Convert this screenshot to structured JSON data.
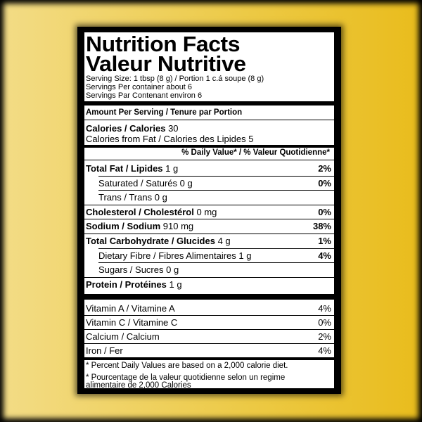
{
  "header": {
    "title1": "Nutrition Facts",
    "title2": "Valeur Nutritive"
  },
  "serving": [
    "Serving Size: 1 tbsp (8 g) / Portion 1 c.á soupe (8 g)",
    "Servings Per container about 6",
    "Servings Par Contenant environ 6"
  ],
  "amount_header": "Amount Per Serving / Tenure par Portion",
  "calories": {
    "label": "Calories / Calories",
    "value": "30",
    "fat_line": "Calories from Fat / Calories des Lipides 5"
  },
  "dv_header": "% Daily Value* / % Valeur Quotidienne*",
  "nutrients": [
    {
      "label": "Total Fat / Lipides",
      "amount": "1 g",
      "dv": "2%"
    },
    {
      "label": "Saturated / Saturés",
      "amount": "0 g",
      "dv": "0%",
      "sub": true
    },
    {
      "label": "Trans / Trans",
      "amount": "0 g",
      "sub": true
    },
    {
      "label": "Cholesterol / Cholestérol",
      "amount": "0 mg",
      "dv": "0%"
    },
    {
      "label": "Sodium / Sodium",
      "amount": "910 mg",
      "dv": "38%"
    },
    {
      "label": "Total Carbohydrate / Glucides",
      "amount": "4 g",
      "dv": "1%"
    },
    {
      "label": "Dietary Fibre / Fibres Alimentaires",
      "amount": "1 g",
      "dv": "4%",
      "sub": true
    },
    {
      "label": "Sugars / Sucres",
      "amount": "0 g",
      "sub": true
    },
    {
      "label": "Protein / Protéines",
      "amount": "1 g"
    }
  ],
  "vitamins": [
    {
      "label": "Vitamin A / Vitamine A",
      "dv": "4%"
    },
    {
      "label": "Vitamin C / Vitamine C",
      "dv": "0%"
    },
    {
      "label": "Calcium / Calcium",
      "dv": "2%"
    },
    {
      "label": "Iron / Fer",
      "dv": "4%"
    }
  ],
  "footnotes": [
    "* Percent Daily Values are based on a 2,000 calorie diet.",
    "* Pourcentage de la valeur quotidienne selon un regime alimentaire de 2,000 Calories"
  ]
}
